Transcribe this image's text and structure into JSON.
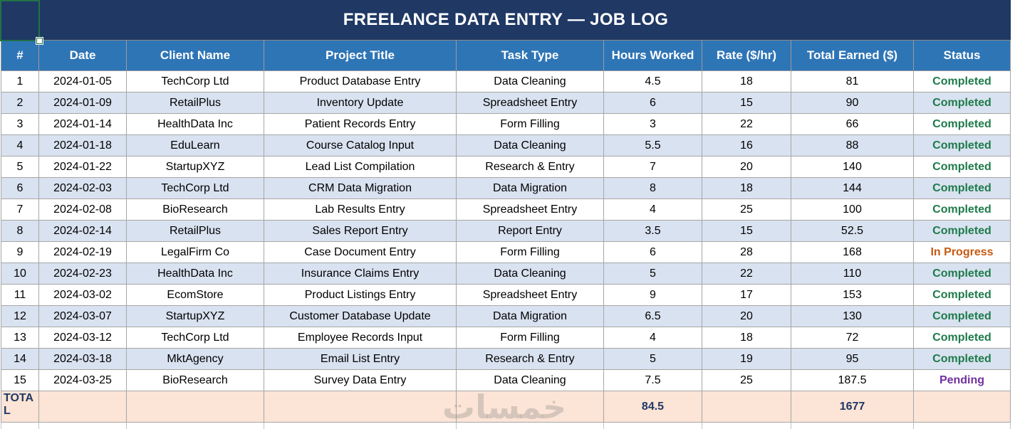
{
  "title": "FREELANCE DATA ENTRY — JOB LOG",
  "watermark_text": "خمسات",
  "table": {
    "columns": [
      "#",
      "Date",
      "Client Name",
      "Project Title",
      "Task Type",
      "Hours Worked",
      "Rate ($/hr)",
      "Total Earned ($)",
      "Status"
    ],
    "rows": [
      {
        "num": "1",
        "date": "2024-01-05",
        "client": "TechCorp Ltd",
        "project": "Product Database Entry",
        "task": "Data Cleaning",
        "hours": "4.5",
        "rate": "18",
        "total": "81",
        "status": "Completed"
      },
      {
        "num": "2",
        "date": "2024-01-09",
        "client": "RetailPlus",
        "project": "Inventory Update",
        "task": "Spreadsheet Entry",
        "hours": "6",
        "rate": "15",
        "total": "90",
        "status": "Completed"
      },
      {
        "num": "3",
        "date": "2024-01-14",
        "client": "HealthData Inc",
        "project": "Patient Records Entry",
        "task": "Form Filling",
        "hours": "3",
        "rate": "22",
        "total": "66",
        "status": "Completed"
      },
      {
        "num": "4",
        "date": "2024-01-18",
        "client": "EduLearn",
        "project": "Course Catalog Input",
        "task": "Data Cleaning",
        "hours": "5.5",
        "rate": "16",
        "total": "88",
        "status": "Completed"
      },
      {
        "num": "5",
        "date": "2024-01-22",
        "client": "StartupXYZ",
        "project": "Lead List Compilation",
        "task": "Research & Entry",
        "hours": "7",
        "rate": "20",
        "total": "140",
        "status": "Completed"
      },
      {
        "num": "6",
        "date": "2024-02-03",
        "client": "TechCorp Ltd",
        "project": "CRM Data Migration",
        "task": "Data Migration",
        "hours": "8",
        "rate": "18",
        "total": "144",
        "status": "Completed"
      },
      {
        "num": "7",
        "date": "2024-02-08",
        "client": "BioResearch",
        "project": "Lab Results Entry",
        "task": "Spreadsheet Entry",
        "hours": "4",
        "rate": "25",
        "total": "100",
        "status": "Completed"
      },
      {
        "num": "8",
        "date": "2024-02-14",
        "client": "RetailPlus",
        "project": "Sales Report Entry",
        "task": "Report Entry",
        "hours": "3.5",
        "rate": "15",
        "total": "52.5",
        "status": "Completed"
      },
      {
        "num": "9",
        "date": "2024-02-19",
        "client": "LegalFirm Co",
        "project": "Case Document Entry",
        "task": "Form Filling",
        "hours": "6",
        "rate": "28",
        "total": "168",
        "status": "In Progress"
      },
      {
        "num": "10",
        "date": "2024-02-23",
        "client": "HealthData Inc",
        "project": "Insurance Claims Entry",
        "task": "Data Cleaning",
        "hours": "5",
        "rate": "22",
        "total": "110",
        "status": "Completed"
      },
      {
        "num": "11",
        "date": "2024-03-02",
        "client": "EcomStore",
        "project": "Product Listings Entry",
        "task": "Spreadsheet Entry",
        "hours": "9",
        "rate": "17",
        "total": "153",
        "status": "Completed"
      },
      {
        "num": "12",
        "date": "2024-03-07",
        "client": "StartupXYZ",
        "project": "Customer Database Update",
        "task": "Data Migration",
        "hours": "6.5",
        "rate": "20",
        "total": "130",
        "status": "Completed"
      },
      {
        "num": "13",
        "date": "2024-03-12",
        "client": "TechCorp Ltd",
        "project": "Employee Records Input",
        "task": "Form Filling",
        "hours": "4",
        "rate": "18",
        "total": "72",
        "status": "Completed"
      },
      {
        "num": "14",
        "date": "2024-03-18",
        "client": "MktAgency",
        "project": "Email List Entry",
        "task": "Research & Entry",
        "hours": "5",
        "rate": "19",
        "total": "95",
        "status": "Completed"
      },
      {
        "num": "15",
        "date": "2024-03-25",
        "client": "BioResearch",
        "project": "Survey Data Entry",
        "task": "Data Cleaning",
        "hours": "7.5",
        "rate": "25",
        "total": "187.5",
        "status": "Pending"
      }
    ],
    "total_row": {
      "label": "TOTAL",
      "hours": "84.5",
      "total": "1677"
    }
  },
  "colors": {
    "title_bg": "#1F3864",
    "header_bg": "#2E75B6",
    "alt_row_bg": "#D9E2F0",
    "total_row_bg": "#FCE4D6",
    "total_text": "#1F3864",
    "selection_green": "#217346",
    "status": {
      "Completed": "#1E7B4B",
      "In Progress": "#C55A11",
      "Pending": "#7030A0"
    }
  }
}
